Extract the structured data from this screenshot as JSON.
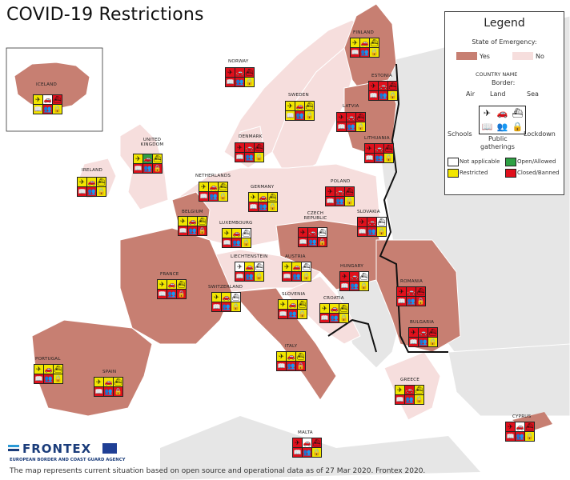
{
  "title": "COVID-19 Restrictions",
  "footer": "The map represents current situation based on open source and operational data as of 27 Mar 2020. Frontex 2020.",
  "brand": {
    "name": "FRONTEX",
    "subtitle": "EUROPEAN BORDER AND COAST GUARD AGENCY"
  },
  "colors": {
    "sea": "#ffffff",
    "emergency_yes": "#c77f72",
    "emergency_no": "#f6dedd",
    "other_land": "#e6e6e6",
    "open": "#2ea043",
    "restricted": "#f2e600",
    "closed": "#e0101c",
    "not_applicable": "#ffffff"
  },
  "legend": {
    "title": "Legend",
    "state_title": "State of Emergency:",
    "yes": "Yes",
    "no": "No",
    "country_name": "COUNTRY NAME",
    "border": "Border:",
    "air": "Air",
    "land": "Land",
    "sea": "Sea",
    "schools": "Schools",
    "public": "Public",
    "gatherings": "gatherings",
    "lockdown": "Lockdown",
    "not_applicable": "Not applicable",
    "restricted": "Restricted",
    "open_allowed": "Open/Allowed",
    "closed_banned": "Closed/Banned"
  },
  "icons": [
    "plane-icon",
    "car-icon",
    "ship-icon",
    "school-icon",
    "gathering-icon",
    "lock-icon"
  ],
  "countries": [
    {
      "name": "ICELAND",
      "state": "yes",
      "status": [
        "restricted",
        "na",
        "closed",
        "restricted",
        "closed",
        "restricted"
      ]
    },
    {
      "name": "FINLAND",
      "state": "yes",
      "status": [
        "restricted",
        "restricted",
        "restricted",
        "closed",
        "closed",
        "restricted"
      ]
    },
    {
      "name": "NORWAY",
      "state": "no",
      "status": [
        "closed",
        "closed",
        "closed",
        "closed",
        "closed",
        "restricted"
      ]
    },
    {
      "name": "SWEDEN",
      "state": "no",
      "status": [
        "restricted",
        "restricted",
        "restricted",
        "restricted",
        "closed",
        "restricted"
      ]
    },
    {
      "name": "ESTONIA",
      "state": "yes",
      "status": [
        "closed",
        "closed",
        "closed",
        "closed",
        "closed",
        "restricted"
      ]
    },
    {
      "name": "LATVIA",
      "state": "yes",
      "status": [
        "closed",
        "closed",
        "closed",
        "closed",
        "closed",
        "restricted"
      ]
    },
    {
      "name": "LITHUANIA",
      "state": "yes",
      "status": [
        "closed",
        "closed",
        "closed",
        "closed",
        "closed",
        "restricted"
      ]
    },
    {
      "name": "DENMARK",
      "state": "no",
      "status": [
        "closed",
        "closed",
        "closed",
        "closed",
        "closed",
        "restricted"
      ]
    },
    {
      "name": "UNITED KINGDOM",
      "state": "no",
      "status": [
        "restricted",
        "open",
        "restricted",
        "closed",
        "closed",
        "closed"
      ]
    },
    {
      "name": "IRELAND",
      "state": "no",
      "status": [
        "restricted",
        "restricted",
        "restricted",
        "closed",
        "closed",
        "restricted"
      ]
    },
    {
      "name": "NETHERLANDS",
      "state": "no",
      "status": [
        "restricted",
        "restricted",
        "restricted",
        "closed",
        "closed",
        "restricted"
      ]
    },
    {
      "name": "GERMANY",
      "state": "no",
      "status": [
        "restricted",
        "restricted",
        "restricted",
        "closed",
        "closed",
        "restricted"
      ]
    },
    {
      "name": "POLAND",
      "state": "no",
      "status": [
        "closed",
        "closed",
        "closed",
        "closed",
        "closed",
        "restricted"
      ]
    },
    {
      "name": "BELGIUM",
      "state": "yes",
      "status": [
        "restricted",
        "restricted",
        "restricted",
        "closed",
        "closed",
        "closed"
      ]
    },
    {
      "name": "LUXEMBOURG",
      "state": "yes",
      "status": [
        "restricted",
        "restricted",
        "na",
        "closed",
        "closed",
        "restricted"
      ]
    },
    {
      "name": "CZECH REPUBLIC",
      "state": "yes",
      "status": [
        "closed",
        "closed",
        "na",
        "closed",
        "closed",
        "closed"
      ]
    },
    {
      "name": "SLOVAKIA",
      "state": "yes",
      "status": [
        "closed",
        "closed",
        "na",
        "closed",
        "closed",
        "restricted"
      ]
    },
    {
      "name": "FRANCE",
      "state": "yes",
      "status": [
        "restricted",
        "restricted",
        "restricted",
        "closed",
        "closed",
        "closed"
      ]
    },
    {
      "name": "LIECHTENSTEIN",
      "state": "no",
      "status": [
        "na",
        "restricted",
        "na",
        "closed",
        "closed",
        "restricted"
      ]
    },
    {
      "name": "AUSTRIA",
      "state": "no",
      "status": [
        "restricted",
        "restricted",
        "na",
        "closed",
        "closed",
        "restricted"
      ]
    },
    {
      "name": "HUNGARY",
      "state": "yes",
      "status": [
        "closed",
        "closed",
        "na",
        "closed",
        "closed",
        "restricted"
      ]
    },
    {
      "name": "SWITZERLAND",
      "state": "yes",
      "status": [
        "restricted",
        "restricted",
        "na",
        "closed",
        "closed",
        "restricted"
      ]
    },
    {
      "name": "SLOVENIA",
      "state": "yes",
      "status": [
        "restricted",
        "restricted",
        "restricted",
        "closed",
        "closed",
        "restricted"
      ]
    },
    {
      "name": "CROATIA",
      "state": "no",
      "status": [
        "restricted",
        "restricted",
        "restricted",
        "closed",
        "closed",
        "restricted"
      ]
    },
    {
      "name": "ROMANIA",
      "state": "yes",
      "status": [
        "closed",
        "closed",
        "closed",
        "closed",
        "closed",
        "closed"
      ]
    },
    {
      "name": "BULGARIA",
      "state": "yes",
      "status": [
        "closed",
        "closed",
        "closed",
        "closed",
        "closed",
        "restricted"
      ]
    },
    {
      "name": "ITALY",
      "state": "yes",
      "status": [
        "restricted",
        "restricted",
        "restricted",
        "closed",
        "closed",
        "closed"
      ]
    },
    {
      "name": "PORTUGAL",
      "state": "yes",
      "status": [
        "restricted",
        "restricted",
        "restricted",
        "closed",
        "closed",
        "restricted"
      ]
    },
    {
      "name": "SPAIN",
      "state": "yes",
      "status": [
        "restricted",
        "restricted",
        "restricted",
        "closed",
        "closed",
        "closed"
      ]
    },
    {
      "name": "GREECE",
      "state": "no",
      "status": [
        "restricted",
        "closed",
        "restricted",
        "closed",
        "closed",
        "restricted"
      ]
    },
    {
      "name": "MALTA",
      "state": "no",
      "status": [
        "closed",
        "na",
        "closed",
        "closed",
        "closed",
        "restricted"
      ]
    },
    {
      "name": "CYPRUS",
      "state": "yes",
      "status": [
        "closed",
        "na",
        "closed",
        "closed",
        "closed",
        "restricted"
      ]
    }
  ]
}
